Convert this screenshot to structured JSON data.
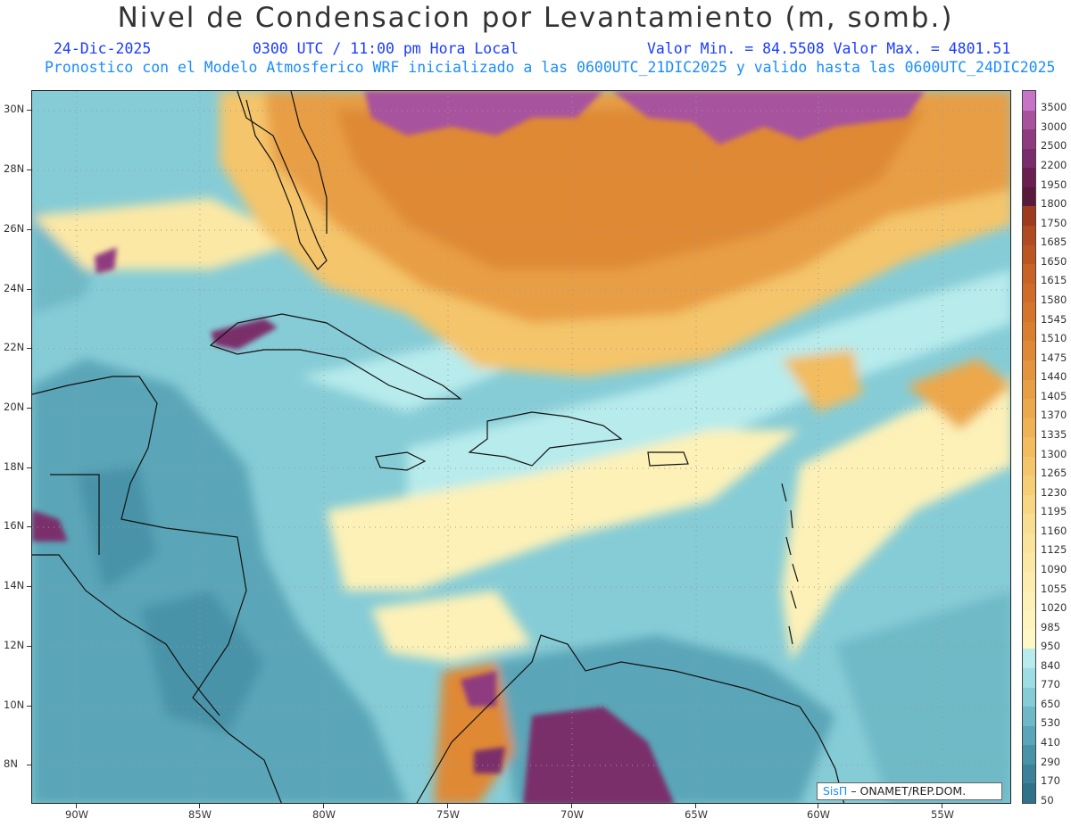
{
  "title": "Nivel de Condensacion por Levantamiento (m, somb.)",
  "subtitle": {
    "date": "24-Dic-2025",
    "time": "0300 UTC / 11:00 pm Hora Local",
    "minmax": "Valor Min. = 84.5508  Valor Max. = 4801.51",
    "model_info": "Pronostico con el Modelo Atmosferico WRF inicializado a las 0600UTC_21DIC2025 y valido hasta las  0600UTC_24DIC2025"
  },
  "map": {
    "lon_labels": [
      "90W",
      "85W",
      "80W",
      "75W",
      "70W",
      "65W",
      "60W",
      "55W"
    ],
    "lat_labels": [
      "30N",
      "28N",
      "26N",
      "24N",
      "22N",
      "20N",
      "18N",
      "16N",
      "14N",
      "12N",
      "10N",
      "8N"
    ]
  },
  "colorbar": {
    "labels": [
      "3500",
      "3000",
      "2500",
      "2200",
      "1950",
      "1800",
      "1750",
      "1685",
      "1650",
      "1615",
      "1580",
      "1545",
      "1510",
      "1475",
      "1440",
      "1405",
      "1370",
      "1335",
      "1300",
      "1265",
      "1230",
      "1195",
      "1160",
      "1125",
      "1090",
      "1055",
      "1020",
      "985",
      "950",
      "840",
      "770",
      "650",
      "530",
      "410",
      "290",
      "170",
      "50"
    ],
    "colors": [
      "#c773c7",
      "#a8529e",
      "#8f3b80",
      "#7a2d6b",
      "#6a1f50",
      "#5a1a3c",
      "#9e3a1e",
      "#b04a20",
      "#bd5521",
      "#c86325",
      "#cf6c28",
      "#d5752c",
      "#da7f30",
      "#df8936",
      "#e4943c",
      "#e89e44",
      "#eca84c",
      "#efb255",
      "#f2bc5f",
      "#f4c56a",
      "#f6ce77",
      "#f8d684",
      "#f9dd90",
      "#fae39b",
      "#fbe8a5",
      "#fcedae",
      "#fdf1b7",
      "#fdf4be",
      "#fef7c6",
      "#b7ebec",
      "#9ddde4",
      "#86ccd6",
      "#6fb9c7",
      "#5aa6b8",
      "#4893a8",
      "#3a8199",
      "#2f7289"
    ]
  },
  "credit": {
    "logo": "SisΠ",
    "text": "– ONAMET/REP.DOM."
  }
}
